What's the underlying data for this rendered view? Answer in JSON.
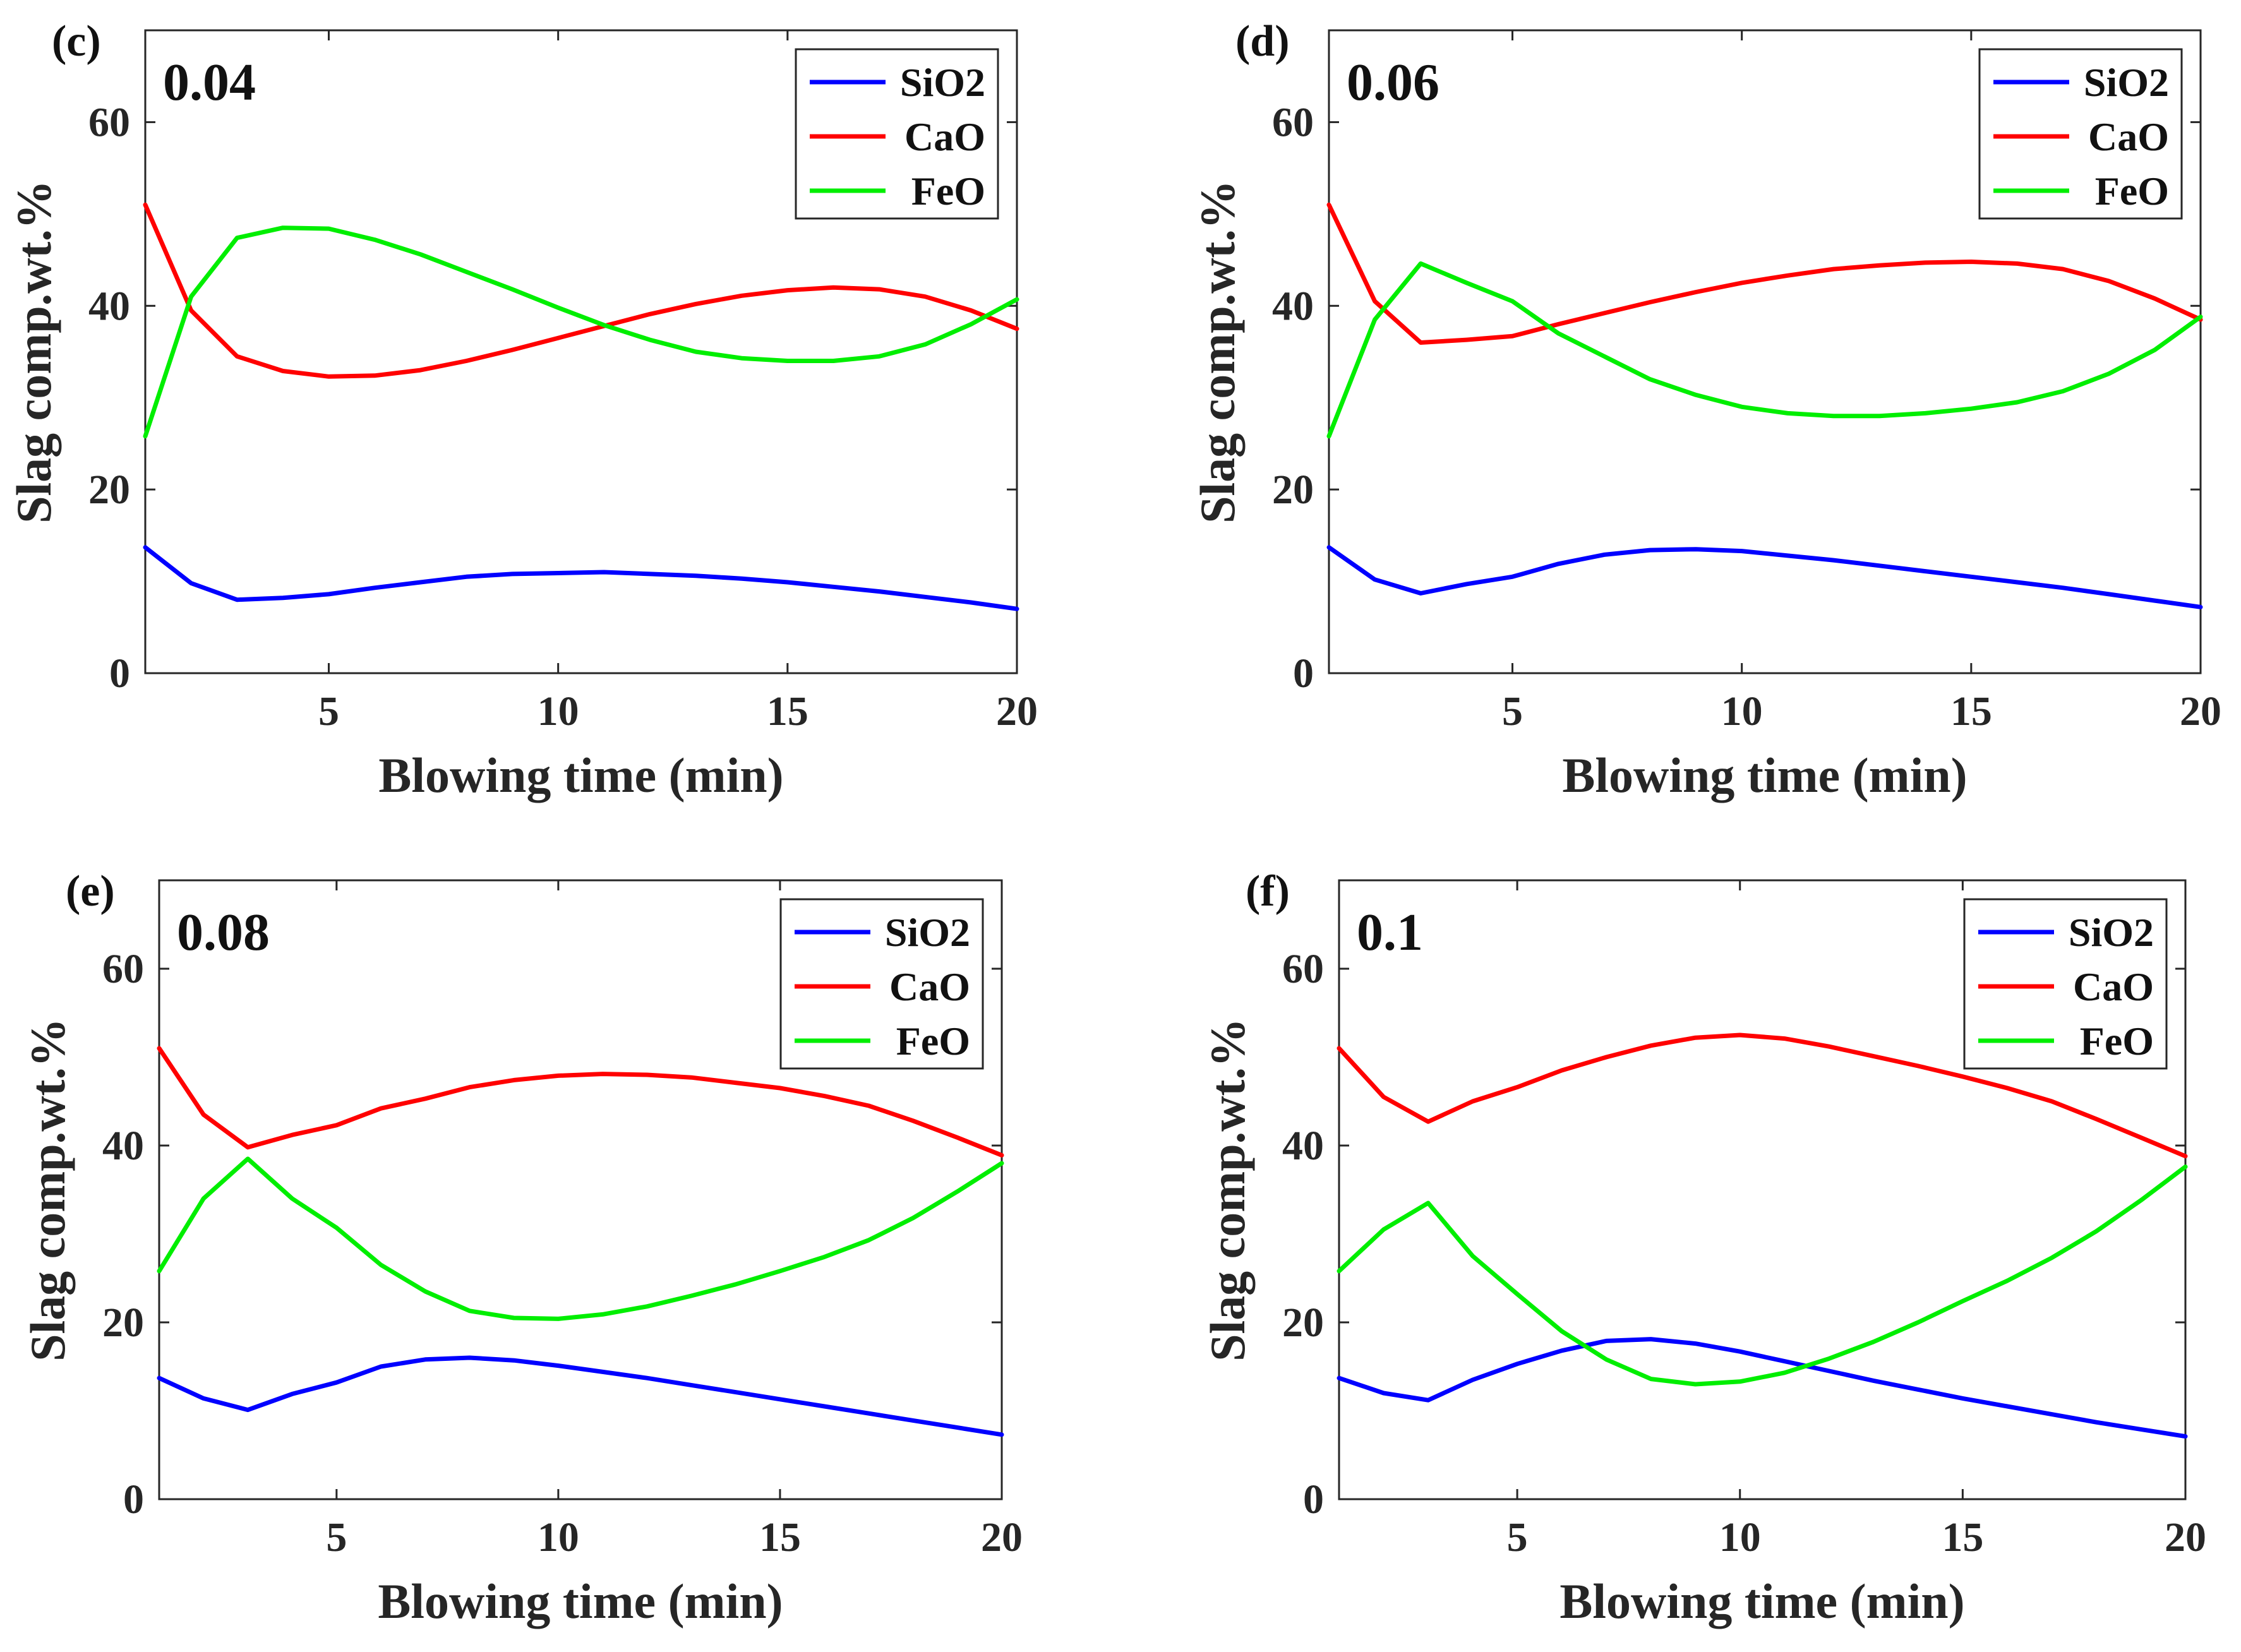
{
  "figure": {
    "colors": {
      "SiO2": "#0000ff",
      "CaO": "#ff0000",
      "FeO": "#00ee00",
      "axis": "#262626"
    }
  },
  "chart_data": [
    {
      "type": "line",
      "panel_letter": "(c)",
      "panel_value": "0.04",
      "xlabel": "Blowing time (min)",
      "ylabel": "Slag comp.wt.%",
      "xlim": [
        1,
        20
      ],
      "ylim": [
        0,
        70
      ],
      "xticks": [
        5,
        10,
        15,
        20
      ],
      "yticks": [
        0,
        20,
        40,
        60
      ],
      "legend_position": "top-right",
      "x": [
        1,
        2,
        3,
        4,
        5,
        6,
        7,
        8,
        9,
        10,
        11,
        12,
        13,
        14,
        15,
        16,
        17,
        18,
        19,
        20
      ],
      "series": [
        {
          "name": "SiO2",
          "values": [
            13.7,
            9.8,
            8.0,
            8.2,
            8.6,
            9.3,
            9.9,
            10.5,
            10.8,
            10.9,
            11.0,
            10.8,
            10.6,
            10.3,
            9.9,
            9.4,
            8.9,
            8.3,
            7.7,
            7.0
          ]
        },
        {
          "name": "CaO",
          "values": [
            51.0,
            39.5,
            34.5,
            32.9,
            32.3,
            32.4,
            33.0,
            34.0,
            35.2,
            36.5,
            37.8,
            39.1,
            40.2,
            41.1,
            41.7,
            42.0,
            41.8,
            41.0,
            39.5,
            37.5
          ]
        },
        {
          "name": "FeO",
          "values": [
            25.8,
            41.0,
            47.4,
            48.5,
            48.4,
            47.2,
            45.6,
            43.7,
            41.8,
            39.8,
            37.9,
            36.3,
            35.0,
            34.3,
            34.0,
            34.0,
            34.5,
            35.8,
            38.0,
            40.7
          ]
        }
      ]
    },
    {
      "type": "line",
      "panel_letter": "(d)",
      "panel_value": "0.06",
      "xlabel": "Blowing time (min)",
      "ylabel": "Slag comp.wt.%",
      "xlim": [
        1,
        20
      ],
      "ylim": [
        0,
        70
      ],
      "xticks": [
        5,
        10,
        15,
        20
      ],
      "yticks": [
        0,
        20,
        40,
        60
      ],
      "legend_position": "top-right",
      "x": [
        1,
        2,
        3,
        4,
        5,
        6,
        7,
        8,
        9,
        10,
        11,
        12,
        13,
        14,
        15,
        16,
        17,
        18,
        19,
        20
      ],
      "series": [
        {
          "name": "SiO2",
          "values": [
            13.7,
            10.2,
            8.7,
            9.7,
            10.5,
            11.9,
            12.9,
            13.4,
            13.5,
            13.3,
            12.8,
            12.3,
            11.7,
            11.1,
            10.5,
            9.9,
            9.3,
            8.6,
            7.9,
            7.2
          ]
        },
        {
          "name": "CaO",
          "values": [
            51.0,
            40.5,
            36.0,
            36.3,
            36.7,
            38.0,
            39.2,
            40.4,
            41.5,
            42.5,
            43.3,
            44.0,
            44.4,
            44.7,
            44.8,
            44.6,
            44.0,
            42.7,
            40.8,
            38.5
          ]
        },
        {
          "name": "FeO",
          "values": [
            25.8,
            38.5,
            44.6,
            42.5,
            40.5,
            37.0,
            34.5,
            32.0,
            30.3,
            29.0,
            28.3,
            28.0,
            28.0,
            28.3,
            28.8,
            29.5,
            30.7,
            32.6,
            35.2,
            38.8
          ]
        }
      ]
    },
    {
      "type": "line",
      "panel_letter": "(e)",
      "panel_value": "0.08",
      "xlabel": "Blowing time (min)",
      "ylabel": "Slag comp.wt.%",
      "xlim": [
        1,
        20
      ],
      "ylim": [
        0,
        70
      ],
      "xticks": [
        5,
        10,
        15,
        20
      ],
      "yticks": [
        0,
        20,
        40,
        60
      ],
      "legend_position": "top-right",
      "x": [
        1,
        2,
        3,
        4,
        5,
        6,
        7,
        8,
        9,
        10,
        11,
        12,
        13,
        14,
        15,
        16,
        17,
        18,
        19,
        20
      ],
      "series": [
        {
          "name": "SiO2",
          "values": [
            13.7,
            11.4,
            10.1,
            11.9,
            13.2,
            15.0,
            15.8,
            16.0,
            15.7,
            15.1,
            14.4,
            13.7,
            12.9,
            12.1,
            11.3,
            10.5,
            9.7,
            8.9,
            8.1,
            7.3
          ]
        },
        {
          "name": "CaO",
          "values": [
            51.0,
            43.5,
            39.8,
            41.2,
            42.3,
            44.2,
            45.3,
            46.6,
            47.4,
            47.9,
            48.1,
            48.0,
            47.7,
            47.1,
            46.5,
            45.6,
            44.5,
            42.8,
            40.9,
            38.9
          ]
        },
        {
          "name": "FeO",
          "values": [
            25.8,
            34.0,
            38.5,
            34.0,
            30.7,
            26.5,
            23.5,
            21.3,
            20.5,
            20.4,
            20.9,
            21.8,
            23.0,
            24.3,
            25.8,
            27.4,
            29.3,
            31.8,
            34.8,
            38.0
          ]
        }
      ]
    },
    {
      "type": "line",
      "panel_letter": "(f)",
      "panel_value": "0.1",
      "xlabel": "Blowing time (min)",
      "ylabel": "Slag comp.wt.%",
      "xlim": [
        1,
        20
      ],
      "ylim": [
        0,
        70
      ],
      "xticks": [
        5,
        10,
        15,
        20
      ],
      "yticks": [
        0,
        20,
        40,
        60
      ],
      "legend_position": "top-right",
      "x": [
        1,
        2,
        3,
        4,
        5,
        6,
        7,
        8,
        9,
        10,
        11,
        12,
        13,
        14,
        15,
        16,
        17,
        18,
        19,
        20
      ],
      "series": [
        {
          "name": "SiO2",
          "values": [
            13.7,
            12.0,
            11.2,
            13.5,
            15.3,
            16.8,
            17.9,
            18.1,
            17.6,
            16.7,
            15.6,
            14.5,
            13.4,
            12.4,
            11.4,
            10.5,
            9.6,
            8.7,
            7.9,
            7.1
          ]
        },
        {
          "name": "CaO",
          "values": [
            51.0,
            45.5,
            42.7,
            45.0,
            46.6,
            48.5,
            50.0,
            51.3,
            52.2,
            52.5,
            52.1,
            51.2,
            50.1,
            49.0,
            47.8,
            46.5,
            45.0,
            43.0,
            40.9,
            38.8
          ]
        },
        {
          "name": "FeO",
          "values": [
            25.8,
            30.5,
            33.5,
            27.5,
            23.2,
            19.0,
            15.8,
            13.6,
            13.0,
            13.3,
            14.3,
            15.9,
            17.8,
            20.0,
            22.4,
            24.7,
            27.3,
            30.3,
            33.8,
            37.6
          ]
        }
      ]
    }
  ]
}
